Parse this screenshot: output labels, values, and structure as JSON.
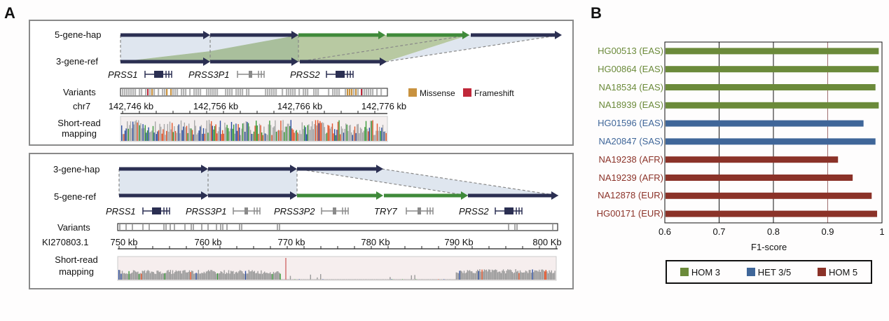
{
  "panel_a": {
    "letter": "A",
    "top": {
      "hap_label": "5-gene-hap",
      "ref_label": "3-gene-ref",
      "genes": [
        "PRSS1",
        "PRSS3P1",
        "PRSS2"
      ],
      "variants_label": "Variants",
      "chrom_label": "chr7",
      "ticks": [
        "142,746 kb",
        "142,756 kb",
        "142,766 kb",
        "142,776 kb"
      ],
      "mapping_label_1": "Short-read",
      "mapping_label_2": "mapping",
      "legend": [
        {
          "label": "Missense",
          "color": "#c8923f"
        },
        {
          "label": "Frameshift",
          "color": "#c0283a"
        }
      ]
    },
    "bottom": {
      "hap_label": "3-gene-hap",
      "ref_label": "5-gene-ref",
      "genes": [
        "PRSS1",
        "PRSS3P1",
        "PRSS3P2",
        "TRY7",
        "PRSS2"
      ],
      "variants_label": "Variants",
      "chrom_label": "KI270803.1",
      "ticks": [
        "750 kb",
        "760 kb",
        "770 kb",
        "780 Kb",
        "790 Kb",
        "800 Kb"
      ],
      "mapping_label_1": "Short-read",
      "mapping_label_2": "mapping"
    },
    "colors": {
      "navy": "#2b2f52",
      "green": "#3f8a3a",
      "shade_blue": "#dfe6ef",
      "shade_green": "#a9bf9c",
      "gene_dark": "#2b2f52",
      "gene_gray": "#8a8a8a"
    }
  },
  "panel_b": {
    "letter": "B"
  },
  "chart_data": {
    "type": "bar",
    "orientation": "horizontal",
    "title": "",
    "xlabel": "F1-score",
    "ylabel": "",
    "xlim": [
      0.6,
      1.0
    ],
    "xticks": [
      "0.6",
      "0.7",
      "0.8",
      "0.9",
      "1"
    ],
    "grid": "vertical",
    "categories": [
      "HG00513 (EAS)",
      "HG00864 (EAS)",
      "NA18534 (EAS)",
      "NA18939 (EAS)",
      "HG01596 (EAS)",
      "NA20847 (SAS)",
      "NA19238 (AFR)",
      "NA19239 (AFR)",
      "NA12878 (EUR)",
      "HG00171 (EUR)"
    ],
    "values": [
      0.994,
      0.994,
      0.988,
      0.994,
      0.966,
      0.988,
      0.919,
      0.946,
      0.981,
      0.991
    ],
    "groups": [
      "HOM 3",
      "HOM 3",
      "HOM 3",
      "HOM 3",
      "HET 3/5",
      "HET 3/5",
      "HOM 5",
      "HOM 5",
      "HOM 5",
      "HOM 5"
    ],
    "legend": [
      {
        "label": "HOM 3",
        "color": "#6b8a3a"
      },
      {
        "label": "HET 3/5",
        "color": "#3f6699"
      },
      {
        "label": "HOM 5",
        "color": "#8b3228"
      }
    ],
    "legend_position": "bottom"
  }
}
